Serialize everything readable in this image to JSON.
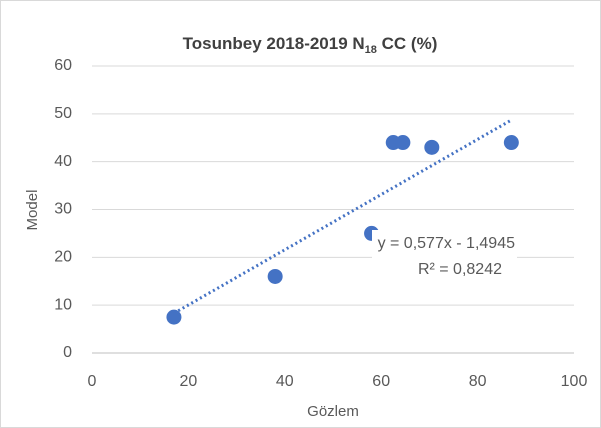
{
  "chart_data": {
    "type": "scatter",
    "title": [
      "Tosunbey 2018-2019 N",
      "18",
      "  CC (%)"
    ],
    "x_label": "Gözlem",
    "y_label": "Model",
    "x": [
      17,
      38,
      58,
      62.5,
      64.5,
      70.5,
      87
    ],
    "values": [
      7.5,
      16,
      25,
      44,
      44,
      43,
      44
    ],
    "color": "#4472c4",
    "xlim": [
      0,
      100
    ],
    "xticks": [
      0,
      20,
      40,
      60,
      80,
      100
    ],
    "ylim": [
      0,
      60
    ],
    "yticks": [
      0,
      10,
      20,
      30,
      40,
      50,
      60
    ],
    "grid": true,
    "trendline": {
      "slope": 0.577,
      "intercept": -1.4945,
      "color": "#4472c4",
      "equation": "y = 0,577x - 1,4945",
      "r2": "R² = 0,8242"
    }
  }
}
